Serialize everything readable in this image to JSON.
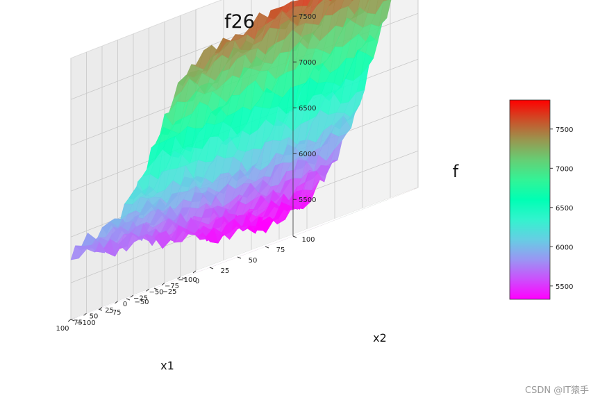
{
  "chart_data": {
    "type": "surface3d",
    "title": "f26",
    "xlabel": "x1",
    "ylabel": "x2",
    "zlabel": "f",
    "xlim": [
      -100,
      100
    ],
    "ylim": [
      -100,
      100
    ],
    "zlim": [
      5350,
      7850
    ],
    "x_ticks": [
      "−100",
      "−75",
      "−50",
      "−25",
      "0",
      "25",
      "50",
      "75",
      "100"
    ],
    "y_ticks": [
      "−100",
      "−75",
      "−50",
      "−25",
      "0",
      "25",
      "50",
      "75",
      "100"
    ],
    "z_ticks": [
      "5500",
      "6000",
      "6500",
      "7000",
      "7500"
    ],
    "colormap": "rainbow",
    "colorbar": {
      "range": [
        5330,
        7870
      ],
      "ticks": [
        "5500",
        "6000",
        "6500",
        "7000",
        "7500"
      ]
    },
    "surface_samples": {
      "x": [
        -100,
        -75,
        -50,
        -25,
        0,
        25,
        50,
        75,
        100
      ],
      "y": [
        -100,
        -75,
        -50,
        -25,
        0,
        25,
        50,
        75,
        100
      ],
      "z_note_rows_by_y_cols_by_x": [
        [
          7400,
          7200,
          6900,
          6500,
          6200,
          6000,
          5900,
          5850,
          5800
        ],
        [
          7450,
          7250,
          6950,
          6550,
          6150,
          5950,
          5850,
          5800,
          5750
        ],
        [
          7550,
          7300,
          6950,
          6500,
          6100,
          5900,
          5800,
          5750,
          5700
        ],
        [
          7600,
          7350,
          7000,
          6500,
          6050,
          5850,
          5700,
          5650,
          5650
        ],
        [
          7700,
          7400,
          7000,
          6450,
          5950,
          5700,
          5600,
          5550,
          5550
        ],
        [
          7750,
          7450,
          7050,
          6500,
          6000,
          5700,
          5500,
          5450,
          5450
        ],
        [
          7800,
          7500,
          7050,
          6550,
          6050,
          5750,
          5500,
          5400,
          5400
        ],
        [
          7850,
          7550,
          7100,
          6600,
          6100,
          5800,
          5550,
          5400,
          5350
        ],
        [
          7850,
          7550,
          7150,
          6650,
          6150,
          5850,
          5600,
          5450,
          5380
        ]
      ]
    },
    "grid": true,
    "legend": "colorbar-right"
  },
  "watermark": "CSDN @IT猿手"
}
